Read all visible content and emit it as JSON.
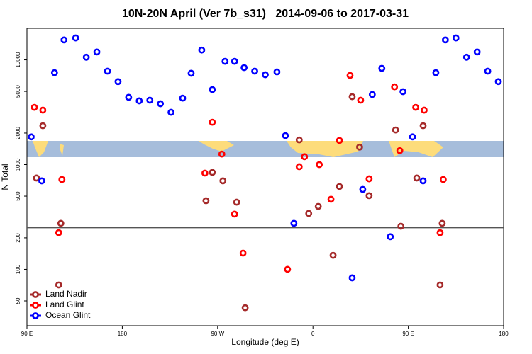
{
  "chart_data": {
    "type": "scatter",
    "title": "10N-20N April (Ver 7b_s31)   2014-09-06 to 2017-03-31",
    "x_label": "Longitude (deg E)",
    "y_label": "N Total",
    "xlim": [
      90,
      540
    ],
    "xticks": [
      {
        "value": 90,
        "label": "90 E"
      },
      180,
      {
        "value": 270,
        "label": "90 W"
      },
      {
        "value": 360,
        "label": "0"
      },
      {
        "value": 450,
        "label": "90 E"
      },
      {
        "value": 540,
        "label": "180"
      }
    ],
    "ylim": [
      29,
      20000
    ],
    "log_y": true,
    "yticks": [
      50,
      100,
      200,
      500,
      1000,
      2000,
      5000,
      10000
    ],
    "hline": 250,
    "legend": "lower left",
    "series": [
      {
        "name": "Land Nadir",
        "color": "#a52a2a",
        "x": [
          99,
          105,
          120,
          122,
          259,
          265,
          275,
          288,
          296,
          347,
          356,
          365,
          379,
          385,
          397,
          404,
          413,
          438,
          443,
          458,
          464,
          480,
          482
        ],
        "values": [
          745,
          2350,
          71,
          275,
          452,
          843,
          700,
          438,
          43,
          1720,
          342,
          399,
          136,
          618,
          4450,
          1470,
          505,
          2140,
          258,
          745,
          2350,
          71,
          275
        ]
      },
      {
        "name": "Land Glint",
        "color": "#ff0000",
        "x": [
          97,
          105,
          120,
          123,
          258,
          265,
          274,
          286,
          294,
          336,
          347,
          352,
          366,
          377,
          385,
          395,
          405,
          413,
          437,
          442,
          457,
          465,
          480,
          483
        ],
        "values": [
          3520,
          3310,
          224,
          721,
          830,
          2540,
          1260,
          337,
          143,
          100,
          955,
          1190,
          1000,
          467,
          1700,
          7100,
          4120,
          732,
          5530,
          1360,
          3520,
          3310,
          224,
          721
        ]
      },
      {
        "name": "Ocean Glint",
        "color": "#0000ff",
        "x": [
          94,
          104,
          116,
          125,
          136,
          146,
          156,
          166,
          176,
          186,
          196,
          206,
          216,
          226,
          237,
          245,
          255,
          265,
          277,
          286,
          295,
          305,
          315,
          326,
          334,
          342,
          397,
          407,
          416,
          425,
          433,
          445,
          454,
          464,
          476,
          485,
          495,
          505,
          515,
          525,
          535
        ],
        "values": [
          1840,
          700,
          7550,
          15500,
          16200,
          10600,
          11900,
          7800,
          6200,
          4390,
          4060,
          4120,
          3810,
          3160,
          4310,
          7450,
          12400,
          5200,
          9680,
          9680,
          8430,
          7800,
          7210,
          7680,
          1890,
          275,
          83,
          580,
          4670,
          8300,
          205,
          4970,
          1840,
          700,
          7550,
          15500,
          16200,
          10600,
          11900,
          7800,
          6200
        ]
      }
    ]
  }
}
